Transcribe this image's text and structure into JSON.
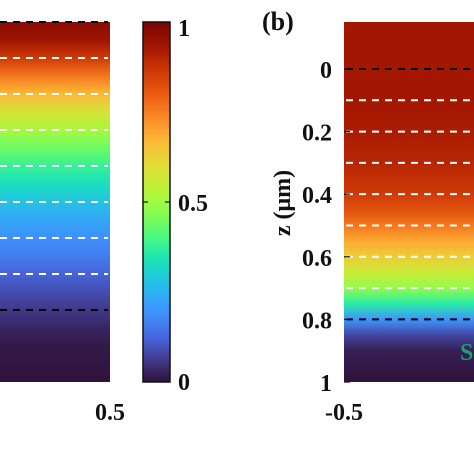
{
  "chart_data": [
    {
      "type": "heatmap",
      "panel": "a",
      "panel_label_visible": false,
      "x_tick_labels": [
        "0.5"
      ],
      "profile": [
        {
          "z": 0.0,
          "v": 0.97
        },
        {
          "z": 0.05,
          "v": 0.94
        },
        {
          "z": 0.1,
          "v": 0.86
        },
        {
          "z": 0.15,
          "v": 0.76
        },
        {
          "z": 0.2,
          "v": 0.67
        },
        {
          "z": 0.25,
          "v": 0.58
        },
        {
          "z": 0.3,
          "v": 0.51
        },
        {
          "z": 0.35,
          "v": 0.44
        },
        {
          "z": 0.4,
          "v": 0.38
        },
        {
          "z": 0.45,
          "v": 0.33
        },
        {
          "z": 0.5,
          "v": 0.28
        },
        {
          "z": 0.55,
          "v": 0.23
        },
        {
          "z": 0.6,
          "v": 0.19
        },
        {
          "z": 0.65,
          "v": 0.16
        },
        {
          "z": 0.7,
          "v": 0.12
        },
        {
          "z": 0.75,
          "v": 0.09
        },
        {
          "z": 0.8,
          "v": 0.06
        },
        {
          "z": 0.85,
          "v": 0.03
        },
        {
          "z": 0.9,
          "v": 0.01
        },
        {
          "z": 1.0,
          "v": 0.0
        }
      ],
      "dashed_lines": [
        {
          "z": 0.0,
          "color": "#000000"
        },
        {
          "z": 0.1,
          "color": "#ffffff"
        },
        {
          "z": 0.2,
          "color": "#ffffff"
        },
        {
          "z": 0.3,
          "color": "#ffffff"
        },
        {
          "z": 0.4,
          "color": "#ffffff"
        },
        {
          "z": 0.5,
          "color": "#ffffff"
        },
        {
          "z": 0.6,
          "color": "#ffffff"
        },
        {
          "z": 0.7,
          "color": "#ffffff"
        },
        {
          "z": 0.8,
          "color": "#000000"
        }
      ]
    },
    {
      "type": "heatmap",
      "panel": "b",
      "panel_label": "(b)",
      "ylabel": "z (μm)",
      "y_ticks": [
        0,
        0.2,
        0.4,
        0.6,
        0.8,
        1
      ],
      "y_tick_labels": [
        "0",
        "0.2",
        "0.4",
        "0.6",
        "0.8",
        "1"
      ],
      "ylim": [
        -0.15,
        1
      ],
      "x_tick_labels": [
        "-0.5"
      ],
      "corner_text": "S",
      "corner_text_color": "#1fa06a",
      "profile": [
        {
          "z": -0.15,
          "v": 0.93
        },
        {
          "z": 0.0,
          "v": 0.93
        },
        {
          "z": 0.1,
          "v": 0.93
        },
        {
          "z": 0.2,
          "v": 0.92
        },
        {
          "z": 0.3,
          "v": 0.9
        },
        {
          "z": 0.4,
          "v": 0.86
        },
        {
          "z": 0.45,
          "v": 0.82
        },
        {
          "z": 0.5,
          "v": 0.76
        },
        {
          "z": 0.55,
          "v": 0.69
        },
        {
          "z": 0.6,
          "v": 0.63
        },
        {
          "z": 0.65,
          "v": 0.56
        },
        {
          "z": 0.7,
          "v": 0.48
        },
        {
          "z": 0.75,
          "v": 0.36
        },
        {
          "z": 0.8,
          "v": 0.2
        },
        {
          "z": 0.85,
          "v": 0.08
        },
        {
          "z": 0.9,
          "v": 0.02
        },
        {
          "z": 1.0,
          "v": 0.0
        }
      ],
      "dashed_lines": [
        {
          "z": 0.0,
          "color": "#000000"
        },
        {
          "z": 0.1,
          "color": "#ffffff"
        },
        {
          "z": 0.2,
          "color": "#ffffff"
        },
        {
          "z": 0.3,
          "color": "#ffffff"
        },
        {
          "z": 0.4,
          "color": "#ffffff"
        },
        {
          "z": 0.5,
          "color": "#ffffff"
        },
        {
          "z": 0.6,
          "color": "#ffffff"
        },
        {
          "z": 0.7,
          "color": "#ffffff"
        },
        {
          "z": 0.8,
          "color": "#000000"
        }
      ]
    },
    {
      "type": "colorbar",
      "colormap": "turbo",
      "range": [
        0,
        1
      ],
      "ticks": [
        0,
        0.5,
        1
      ],
      "tick_labels": [
        "0",
        "0.5",
        "1"
      ]
    }
  ]
}
